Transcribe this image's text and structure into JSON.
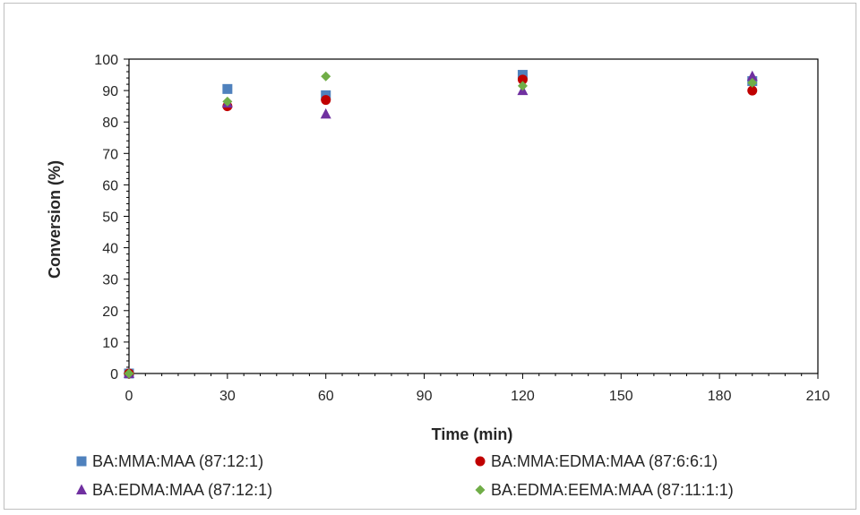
{
  "chart_data": {
    "type": "scatter",
    "title": "",
    "xlabel": "Time (min)",
    "ylabel": "Conversion (%)",
    "xlim": [
      0,
      210
    ],
    "ylim": [
      0,
      100
    ],
    "xticks": [
      0,
      30,
      60,
      90,
      120,
      150,
      180,
      210
    ],
    "yticks": [
      0,
      10,
      20,
      30,
      40,
      50,
      60,
      70,
      80,
      90,
      100
    ],
    "grid": false,
    "legend_position": "bottom",
    "series": [
      {
        "name": "BA:MMA:MAA (87:12:1)",
        "marker": "square",
        "color": "#4F81BD",
        "x": [
          0,
          30,
          60,
          120,
          190
        ],
        "y": [
          0,
          90.5,
          88.5,
          95.0,
          93.0
        ]
      },
      {
        "name": "BA:MMA:EDMA:MAA (87:6:6:1)",
        "marker": "circle",
        "color": "#C00000",
        "x": [
          0,
          30,
          60,
          120,
          190
        ],
        "y": [
          0,
          85.0,
          87.0,
          93.5,
          90.0
        ]
      },
      {
        "name": "BA:EDMA:MAA (87:12:1)",
        "marker": "triangle",
        "color": "#7030A0",
        "x": [
          0,
          30,
          60,
          120,
          190
        ],
        "y": [
          0,
          86.0,
          82.5,
          90.0,
          94.5
        ]
      },
      {
        "name": "BA:EDMA:EEMA:MAA (87:11:1:1)",
        "marker": "diamond",
        "color": "#70AD47",
        "x": [
          0,
          30,
          60,
          120,
          190
        ],
        "y": [
          0,
          86.5,
          94.5,
          91.5,
          92.5
        ]
      }
    ]
  }
}
